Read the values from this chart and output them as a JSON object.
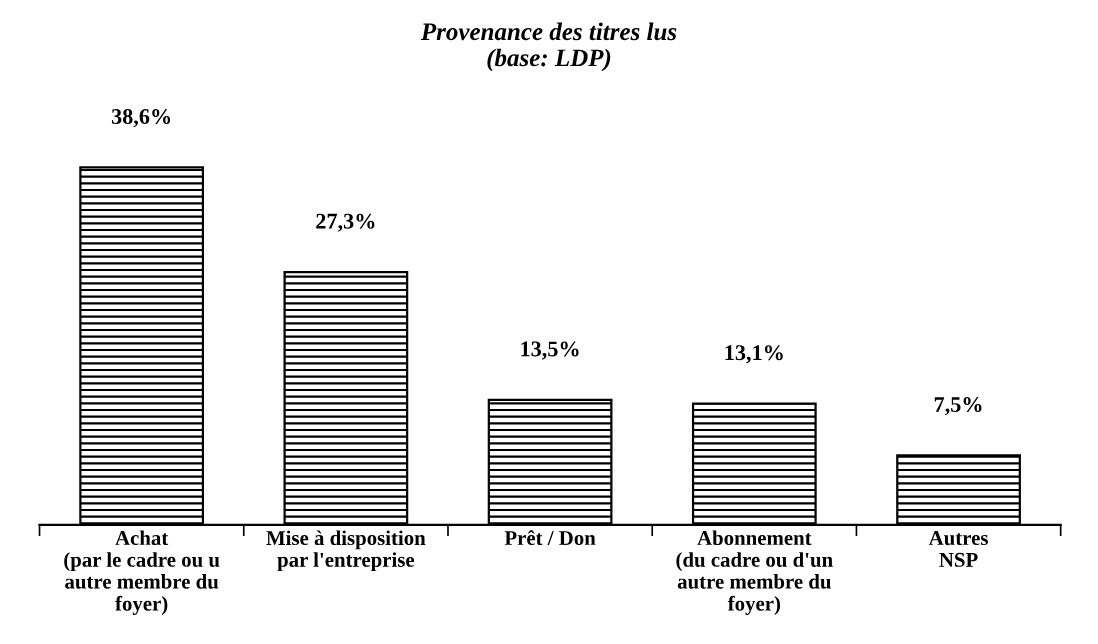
{
  "chart_data": {
    "type": "bar",
    "title": "Provenance des titres lus\n(base: LDP)",
    "categories": [
      "Achat\n(par le cadre ou u\nautre membre du\nfoyer)",
      "Mise à disposition\npar l'entreprise",
      "Prêt / Don",
      "Abonnement\n(du cadre ou d'un\nautre membre du\nfoyer)",
      "Autres\nNSP"
    ],
    "values": [
      38.6,
      27.3,
      13.5,
      13.1,
      7.5
    ],
    "value_labels": [
      "38,6%",
      "27,3%",
      "13,5%",
      "13,1%",
      "7,5%"
    ],
    "color": "#000000",
    "grid": false,
    "legend": false
  }
}
